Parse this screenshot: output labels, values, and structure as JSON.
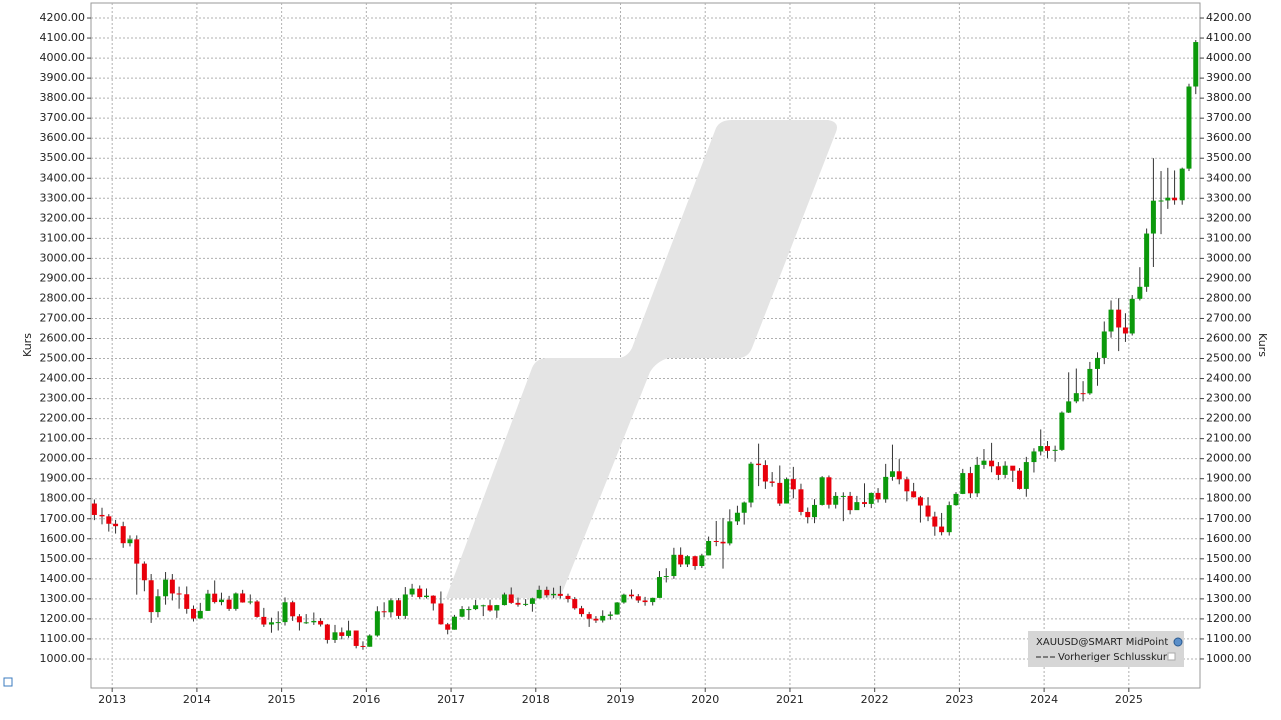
{
  "chart_data": {
    "type": "candlestick",
    "ylabel": "Kurs",
    "legend": [
      "XAUUSD@SMART MidPoint",
      "Vorheriger Schlusskurs"
    ],
    "legend_position": "bottom-right",
    "up_color": "#0b990b",
    "down_color": "#e8000b",
    "grid": true,
    "xlim": [
      2012.75,
      2025.84
    ],
    "ylim": [
      855,
      4275
    ],
    "xticks": [
      2013,
      2014,
      2015,
      2016,
      2017,
      2018,
      2019,
      2020,
      2021,
      2022,
      2023,
      2024,
      2025
    ],
    "yticks": [
      {
        "value": 1000,
        "label": "1000.00"
      },
      {
        "value": 1100,
        "label": "1100.00"
      },
      {
        "value": 1200,
        "label": "1200.00"
      },
      {
        "value": 1300,
        "label": "1300.00"
      },
      {
        "value": 1400,
        "label": "1400.00"
      },
      {
        "value": 1500,
        "label": "1500.00"
      },
      {
        "value": 1600,
        "label": "1600.00"
      },
      {
        "value": 1700,
        "label": "1700.00"
      },
      {
        "value": 1800,
        "label": "1800.00"
      },
      {
        "value": 1900,
        "label": "1900.00"
      },
      {
        "value": 2000,
        "label": "2000.00"
      },
      {
        "value": 2100,
        "label": "2100.00"
      },
      {
        "value": 2200,
        "label": "2200.00"
      },
      {
        "value": 2300,
        "label": "2300.00"
      },
      {
        "value": 2400,
        "label": "2400.00"
      },
      {
        "value": 2500,
        "label": "2500.00"
      },
      {
        "value": 2600,
        "label": "2600.00"
      },
      {
        "value": 2700,
        "label": "2700.00"
      },
      {
        "value": 2800,
        "label": "2800.00"
      },
      {
        "value": 2900,
        "label": "2900.00"
      },
      {
        "value": 3000,
        "label": "3000.00"
      },
      {
        "value": 3100,
        "label": "3100.00"
      },
      {
        "value": 3200,
        "label": "3200.00"
      },
      {
        "value": 3300,
        "label": "3300.00"
      },
      {
        "value": 3400,
        "label": "3400.00"
      },
      {
        "value": 3500,
        "label": "3500.00"
      },
      {
        "value": 3600,
        "label": "3600.00"
      },
      {
        "value": 3700,
        "label": "3700.00"
      },
      {
        "value": 3800,
        "label": "3800.00"
      },
      {
        "value": 3900,
        "label": "3900.00"
      },
      {
        "value": 4000,
        "label": "4000.00"
      },
      {
        "value": 4100,
        "label": "4100.00"
      },
      {
        "value": 4200,
        "label": "4200.00"
      }
    ],
    "x": [
      2012.79,
      2012.88,
      2012.96,
      2013.04,
      2013.13,
      2013.21,
      2013.29,
      2013.38,
      2013.46,
      2013.54,
      2013.63,
      2013.71,
      2013.79,
      2013.88,
      2013.96,
      2014.04,
      2014.13,
      2014.21,
      2014.29,
      2014.38,
      2014.46,
      2014.54,
      2014.63,
      2014.71,
      2014.79,
      2014.88,
      2014.96,
      2015.04,
      2015.13,
      2015.21,
      2015.29,
      2015.38,
      2015.46,
      2015.54,
      2015.63,
      2015.71,
      2015.79,
      2015.88,
      2015.96,
      2016.04,
      2016.13,
      2016.21,
      2016.29,
      2016.38,
      2016.46,
      2016.54,
      2016.63,
      2016.71,
      2016.79,
      2016.88,
      2016.96,
      2017.04,
      2017.13,
      2017.21,
      2017.29,
      2017.38,
      2017.46,
      2017.54,
      2017.63,
      2017.71,
      2017.79,
      2017.88,
      2017.96,
      2018.04,
      2018.13,
      2018.21,
      2018.29,
      2018.38,
      2018.46,
      2018.54,
      2018.63,
      2018.71,
      2018.79,
      2018.88,
      2018.96,
      2019.04,
      2019.13,
      2019.21,
      2019.29,
      2019.38,
      2019.46,
      2019.54,
      2019.63,
      2019.71,
      2019.79,
      2019.88,
      2019.96,
      2020.04,
      2020.13,
      2020.21,
      2020.29,
      2020.38,
      2020.46,
      2020.54,
      2020.63,
      2020.71,
      2020.79,
      2020.88,
      2020.96,
      2021.04,
      2021.13,
      2021.21,
      2021.29,
      2021.38,
      2021.46,
      2021.54,
      2021.63,
      2021.71,
      2021.79,
      2021.88,
      2021.96,
      2022.04,
      2022.13,
      2022.21,
      2022.29,
      2022.38,
      2022.46,
      2022.54,
      2022.63,
      2022.71,
      2022.79,
      2022.88,
      2022.96,
      2023.04,
      2023.13,
      2023.21,
      2023.29,
      2023.38,
      2023.46,
      2023.54,
      2023.63,
      2023.71,
      2023.79,
      2023.88,
      2023.96,
      2024.04,
      2024.13,
      2024.21,
      2024.29,
      2024.38,
      2024.46,
      2024.54,
      2024.63,
      2024.71,
      2024.79,
      2024.88,
      2024.96,
      2025.04,
      2025.13,
      2025.21,
      2025.29,
      2025.38,
      2025.46,
      2025.54,
      2025.63,
      2025.71,
      2025.79
    ],
    "open": [
      1776,
      1719,
      1712,
      1675,
      1663,
      1578,
      1597,
      1476,
      1393,
      1234,
      1313,
      1396,
      1327,
      1323,
      1250,
      1202,
      1240,
      1326,
      1284,
      1296,
      1250,
      1327,
      1282,
      1287,
      1210,
      1172,
      1183,
      1184,
      1283,
      1213,
      1183,
      1183,
      1190,
      1172,
      1095,
      1133,
      1115,
      1142,
      1065,
      1061,
      1117,
      1238,
      1233,
      1293,
      1215,
      1322,
      1351,
      1309,
      1316,
      1277,
      1173,
      1146,
      1211,
      1249,
      1249,
      1268,
      1268,
      1242,
      1269,
      1322,
      1280,
      1271,
      1275,
      1303,
      1345,
      1318,
      1325,
      1315,
      1299,
      1253,
      1224,
      1201,
      1192,
      1215,
      1222,
      1282,
      1321,
      1313,
      1292,
      1284,
      1305,
      1409,
      1414,
      1520,
      1472,
      1513,
      1464,
      1517,
      1589,
      1585,
      1577,
      1687,
      1730,
      1781,
      1975,
      1968,
      1886,
      1879,
      1776,
      1898,
      1847,
      1734,
      1708,
      1769,
      1907,
      1770,
      1814,
      1814,
      1743,
      1783,
      1774,
      1829,
      1797,
      1909,
      1937,
      1897,
      1837,
      1807,
      1766,
      1711,
      1661,
      1633,
      1768,
      1824,
      1928,
      1827,
      1969,
      1990,
      1962,
      1919,
      1965,
      1940,
      1849,
      1983,
      2036,
      2063,
      2039,
      2044,
      2230,
      2286,
      2327,
      2326,
      2448,
      2503,
      2635,
      2744,
      2655,
      2625,
      2798,
      2858,
      3124,
      3288,
      3289,
      3303,
      3290,
      3448,
      3858
    ],
    "high": [
      1796,
      1755,
      1723,
      1694,
      1685,
      1617,
      1617,
      1487,
      1424,
      1348,
      1434,
      1424,
      1361,
      1362,
      1267,
      1280,
      1345,
      1392,
      1331,
      1315,
      1332,
      1345,
      1322,
      1294,
      1255,
      1206,
      1238,
      1307,
      1291,
      1224,
      1224,
      1232,
      1204,
      1175,
      1170,
      1157,
      1191,
      1142,
      1088,
      1123,
      1263,
      1283,
      1303,
      1304,
      1359,
      1375,
      1367,
      1352,
      1318,
      1337,
      1180,
      1220,
      1264,
      1262,
      1295,
      1271,
      1296,
      1270,
      1331,
      1357,
      1306,
      1299,
      1306,
      1366,
      1361,
      1356,
      1365,
      1326,
      1309,
      1265,
      1235,
      1214,
      1243,
      1237,
      1284,
      1326,
      1347,
      1324,
      1310,
      1306,
      1439,
      1453,
      1555,
      1557,
      1518,
      1516,
      1525,
      1611,
      1689,
      1704,
      1747,
      1765,
      1786,
      1984,
      2075,
      1992,
      1933,
      1966,
      1906,
      1959,
      1875,
      1756,
      1798,
      1913,
      1916,
      1833,
      1832,
      1834,
      1814,
      1877,
      1831,
      1853,
      1974,
      2070,
      1998,
      1910,
      1879,
      1814,
      1808,
      1735,
      1729,
      1786,
      1833,
      1949,
      1959,
      2009,
      2048,
      2079,
      1983,
      1987,
      1949,
      1953,
      2009,
      2052,
      2146,
      2088,
      2065,
      2236,
      2431,
      2450,
      2387,
      2483,
      2531,
      2685,
      2790,
      2801,
      2726,
      2817,
      2956,
      3149,
      3500,
      3436,
      3452,
      3439,
      3453,
      3872,
      4090
    ],
    "low": [
      1693,
      1672,
      1636,
      1626,
      1555,
      1562,
      1321,
      1338,
      1180,
      1208,
      1271,
      1292,
      1251,
      1226,
      1187,
      1202,
      1240,
      1277,
      1268,
      1240,
      1241,
      1281,
      1273,
      1206,
      1160,
      1131,
      1142,
      1167,
      1190,
      1142,
      1175,
      1170,
      1162,
      1077,
      1080,
      1098,
      1106,
      1053,
      1046,
      1061,
      1111,
      1208,
      1207,
      1200,
      1200,
      1310,
      1301,
      1302,
      1242,
      1171,
      1123,
      1146,
      1208,
      1195,
      1244,
      1214,
      1236,
      1205,
      1267,
      1275,
      1261,
      1264,
      1236,
      1302,
      1307,
      1303,
      1302,
      1282,
      1246,
      1211,
      1160,
      1180,
      1182,
      1196,
      1221,
      1276,
      1302,
      1280,
      1266,
      1267,
      1305,
      1382,
      1400,
      1459,
      1459,
      1445,
      1454,
      1517,
      1563,
      1451,
      1567,
      1669,
      1671,
      1757,
      1863,
      1849,
      1860,
      1764,
      1776,
      1802,
      1717,
      1677,
      1678,
      1766,
      1751,
      1751,
      1688,
      1722,
      1746,
      1758,
      1753,
      1781,
      1780,
      1890,
      1872,
      1787,
      1806,
      1681,
      1688,
      1615,
      1617,
      1616,
      1765,
      1823,
      1804,
      1809,
      1949,
      1932,
      1893,
      1902,
      1884,
      1846,
      1810,
      1931,
      2016,
      2002,
      1985,
      2039,
      2228,
      2277,
      2286,
      2319,
      2364,
      2472,
      2604,
      2537,
      2583,
      2615,
      2790,
      2833,
      2957,
      3121,
      3247,
      3268,
      3268,
      3436,
      3820
    ],
    "close": [
      1719,
      1712,
      1675,
      1663,
      1578,
      1597,
      1476,
      1393,
      1234,
      1313,
      1396,
      1327,
      1323,
      1250,
      1202,
      1240,
      1326,
      1284,
      1296,
      1250,
      1327,
      1282,
      1287,
      1210,
      1172,
      1183,
      1184,
      1283,
      1213,
      1183,
      1183,
      1190,
      1172,
      1095,
      1133,
      1115,
      1142,
      1065,
      1061,
      1117,
      1238,
      1233,
      1293,
      1215,
      1322,
      1351,
      1309,
      1316,
      1277,
      1173,
      1146,
      1211,
      1249,
      1249,
      1268,
      1268,
      1242,
      1269,
      1322,
      1280,
      1271,
      1275,
      1303,
      1345,
      1318,
      1325,
      1315,
      1299,
      1253,
      1224,
      1201,
      1192,
      1215,
      1222,
      1282,
      1321,
      1313,
      1292,
      1284,
      1305,
      1409,
      1414,
      1520,
      1472,
      1513,
      1464,
      1517,
      1589,
      1585,
      1577,
      1687,
      1730,
      1781,
      1975,
      1968,
      1886,
      1879,
      1776,
      1898,
      1847,
      1734,
      1708,
      1769,
      1907,
      1770,
      1814,
      1814,
      1743,
      1783,
      1774,
      1829,
      1797,
      1909,
      1937,
      1897,
      1837,
      1807,
      1766,
      1711,
      1661,
      1633,
      1768,
      1824,
      1928,
      1827,
      1969,
      1990,
      1962,
      1919,
      1965,
      1940,
      1849,
      1983,
      2036,
      2063,
      2039,
      2044,
      2230,
      2286,
      2327,
      2326,
      2448,
      2503,
      2635,
      2744,
      2655,
      2625,
      2798,
      2858,
      3124,
      3288,
      3289,
      3303,
      3290,
      3448,
      3858,
      4080
    ]
  }
}
